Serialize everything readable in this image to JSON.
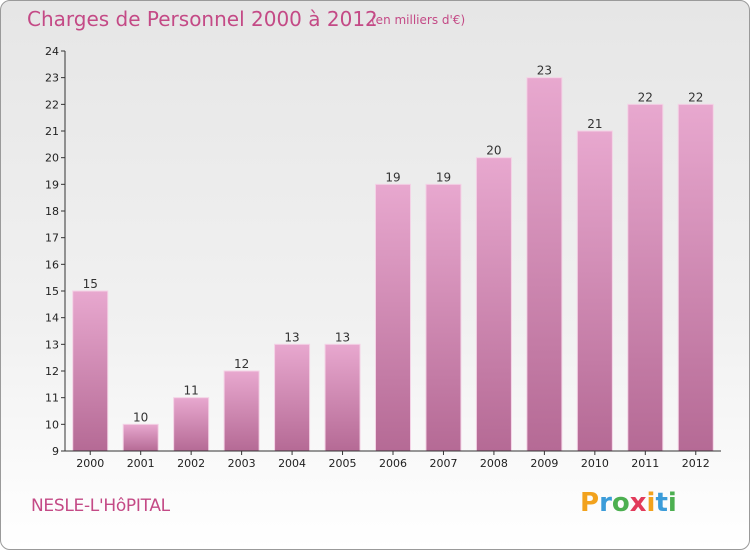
{
  "title": "Charges de Personnel 2000 à 2012",
  "subtitle": "(en milliers d'€)",
  "place": "NESLE-L'HôPITAL",
  "logo": {
    "letters": [
      "P",
      "r",
      "o",
      "x",
      "i",
      "t",
      "i"
    ],
    "colors": [
      "#f2a21d",
      "#3b9cd9",
      "#4caf50",
      "#e23a5a",
      "#f2a21d",
      "#3b9cd9",
      "#4caf50"
    ]
  },
  "colors": {
    "bar_top": "#e8a8cf",
    "bar_bottom": "#b56a95",
    "bar_stroke": "#f4d2e6",
    "accent": "#c44a86"
  },
  "chart_data": {
    "type": "bar",
    "categories": [
      "2000",
      "2001",
      "2002",
      "2003",
      "2004",
      "2005",
      "2006",
      "2007",
      "2008",
      "2009",
      "2010",
      "2011",
      "2012"
    ],
    "values": [
      15,
      10,
      11,
      12,
      13,
      13,
      19,
      19,
      20,
      23,
      21,
      22,
      22
    ],
    "ylim": [
      9,
      24
    ],
    "yticks": [
      9,
      10,
      11,
      12,
      13,
      14,
      15,
      16,
      17,
      18,
      19,
      20,
      21,
      22,
      23,
      24
    ],
    "title": "Charges de Personnel 2000 à 2012",
    "xlabel": "",
    "ylabel": "",
    "grid": false,
    "legend": false
  }
}
